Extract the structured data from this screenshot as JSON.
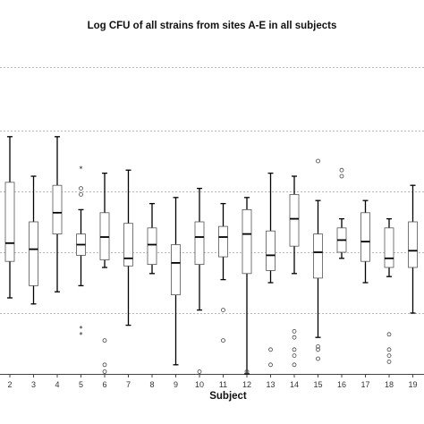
{
  "chart_data": {
    "type": "boxplot",
    "title": "Log CFU of all strains from sites A-E in all subjects",
    "xlabel": "Subject",
    "ylabel": "",
    "ylim": [
      0,
      10
    ],
    "reference_lines": [
      2,
      4,
      6,
      8
    ],
    "grid": false,
    "categories": [
      "2",
      "3",
      "4",
      "5",
      "6",
      "7",
      "8",
      "9",
      "10",
      "11",
      "12",
      "13",
      "14",
      "15",
      "16",
      "17",
      "18",
      "19"
    ],
    "boxes": [
      {
        "subject": "2",
        "whisker_low": 2.5,
        "q1": 3.7,
        "median": 4.3,
        "q3": 6.3,
        "whisker_high": 7.8,
        "outliers": [],
        "extremes": []
      },
      {
        "subject": "3",
        "whisker_low": 2.3,
        "q1": 2.9,
        "median": 4.1,
        "q3": 5.0,
        "whisker_high": 6.5,
        "outliers": [],
        "extremes": []
      },
      {
        "subject": "4",
        "whisker_low": 2.7,
        "q1": 4.6,
        "median": 5.3,
        "q3": 6.2,
        "whisker_high": 7.8,
        "outliers": [],
        "extremes": []
      },
      {
        "subject": "5",
        "whisker_low": 2.9,
        "q1": 3.9,
        "median": 4.25,
        "q3": 4.6,
        "whisker_high": 5.4,
        "outliers": [
          5.9,
          6.1
        ],
        "extremes": [
          1.5,
          1.3,
          6.75
        ]
      },
      {
        "subject": "6",
        "whisker_low": 3.5,
        "q1": 3.75,
        "median": 4.5,
        "q3": 5.3,
        "whisker_high": 6.6,
        "outliers": [
          1.1,
          0.3,
          0.0
        ],
        "extremes": []
      },
      {
        "subject": "7",
        "whisker_low": 1.6,
        "q1": 3.55,
        "median": 3.8,
        "q3": 4.95,
        "whisker_high": 6.7,
        "outliers": [],
        "extremes": []
      },
      {
        "subject": "8",
        "whisker_low": 3.3,
        "q1": 3.6,
        "median": 4.25,
        "q3": 4.8,
        "whisker_high": 5.6,
        "outliers": [],
        "extremes": []
      },
      {
        "subject": "9",
        "whisker_low": 0.3,
        "q1": 2.6,
        "median": 3.65,
        "q3": 4.25,
        "whisker_high": 5.8,
        "outliers": [],
        "extremes": []
      },
      {
        "subject": "10",
        "whisker_low": 2.1,
        "q1": 3.6,
        "median": 4.5,
        "q3": 5.0,
        "whisker_high": 6.1,
        "outliers": [
          0.0
        ],
        "extremes": []
      },
      {
        "subject": "11",
        "whisker_low": 3.1,
        "q1": 3.85,
        "median": 4.5,
        "q3": 4.85,
        "whisker_high": 5.6,
        "outliers": [
          2.1,
          1.1
        ],
        "extremes": []
      },
      {
        "subject": "12",
        "whisker_low": 0.0,
        "q1": 3.3,
        "median": 4.6,
        "q3": 5.4,
        "whisker_high": 5.8,
        "outliers": [
          0.0
        ],
        "extremes": []
      },
      {
        "subject": "13",
        "whisker_low": 3.0,
        "q1": 3.4,
        "median": 3.9,
        "q3": 4.7,
        "whisker_high": 6.6,
        "outliers": [
          0.8,
          0.3
        ],
        "extremes": []
      },
      {
        "subject": "14",
        "whisker_low": 3.3,
        "q1": 4.2,
        "median": 5.1,
        "q3": 5.9,
        "whisker_high": 6.5,
        "outliers": [
          1.4,
          1.2,
          0.8,
          0.6,
          0.3
        ],
        "extremes": []
      },
      {
        "subject": "15",
        "whisker_low": 1.2,
        "q1": 3.15,
        "median": 4.0,
        "q3": 4.6,
        "whisker_high": 5.7,
        "outliers": [
          7.0,
          0.9,
          0.8,
          0.5
        ],
        "extremes": []
      },
      {
        "subject": "16",
        "whisker_low": 3.8,
        "q1": 4.0,
        "median": 4.4,
        "q3": 4.8,
        "whisker_high": 5.1,
        "outliers": [
          6.7,
          6.5
        ],
        "extremes": []
      },
      {
        "subject": "17",
        "whisker_low": 3.0,
        "q1": 3.7,
        "median": 4.35,
        "q3": 5.3,
        "whisker_high": 5.7,
        "outliers": [],
        "extremes": []
      },
      {
        "subject": "18",
        "whisker_low": 3.2,
        "q1": 3.5,
        "median": 3.8,
        "q3": 4.8,
        "whisker_high": 5.1,
        "outliers": [
          1.3,
          0.8,
          0.6,
          0.4
        ],
        "extremes": []
      },
      {
        "subject": "19",
        "whisker_low": 2.0,
        "q1": 3.5,
        "median": 4.05,
        "q3": 5.0,
        "whisker_high": 6.2,
        "outliers": [],
        "extremes": []
      }
    ]
  }
}
